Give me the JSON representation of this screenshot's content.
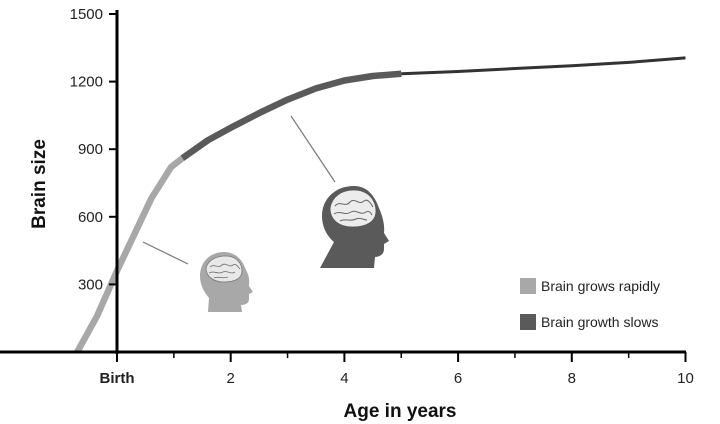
{
  "chart_data": {
    "type": "line",
    "xlabel": "Age in years",
    "ylabel": "Brain size",
    "xlim": [
      -0.7,
      10
    ],
    "ylim": [
      0,
      1500
    ],
    "x_ticks": [
      {
        "value": 0,
        "label": "Birth"
      },
      {
        "value": 2,
        "label": "2"
      },
      {
        "value": 4,
        "label": "4"
      },
      {
        "value": 6,
        "label": "6"
      },
      {
        "value": 8,
        "label": "8"
      },
      {
        "value": 10,
        "label": "10"
      }
    ],
    "x_minor_ticks": [
      1,
      3,
      5,
      7,
      9
    ],
    "y_ticks": [
      300,
      600,
      900,
      1200,
      1500
    ],
    "grid": false,
    "legend_position": "bottom-right",
    "series": [
      {
        "name": "Brain grows rapidly",
        "color": "#a8a8a8",
        "points": [
          [
            -0.7,
            0
          ],
          [
            -0.35,
            160
          ],
          [
            0,
            360
          ],
          [
            0.3,
            520
          ],
          [
            0.6,
            680
          ],
          [
            0.95,
            820
          ],
          [
            1.15,
            860
          ]
        ]
      },
      {
        "name": "Brain growth slows",
        "color": "#5a5a5a",
        "points": [
          [
            1.15,
            860
          ],
          [
            1.6,
            940
          ],
          [
            2.0,
            995
          ],
          [
            2.5,
            1060
          ],
          [
            3.0,
            1120
          ],
          [
            3.5,
            1170
          ],
          [
            4.0,
            1205
          ],
          [
            4.5,
            1225
          ],
          [
            5.0,
            1235
          ]
        ]
      },
      {
        "color": "#333333",
        "points": [
          [
            5.0,
            1235
          ],
          [
            6.0,
            1245
          ],
          [
            7.0,
            1258
          ],
          [
            8.0,
            1270
          ],
          [
            9.0,
            1285
          ],
          [
            10.0,
            1305
          ]
        ]
      }
    ],
    "annotations": [
      {
        "icon": "infant-head-icon",
        "color": "#a8a8a8"
      },
      {
        "icon": "child-head-icon",
        "color": "#5a5a5a"
      }
    ]
  }
}
